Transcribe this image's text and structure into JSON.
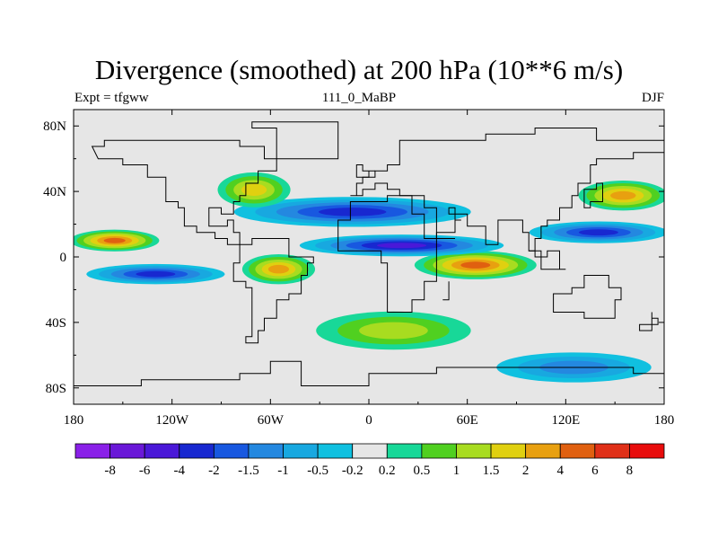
{
  "title": "Divergence (smoothed) at 200 hPa (10**6 m/s)",
  "subtitle_left": "Expt = tfgww",
  "subtitle_center": "111_0_MaBP",
  "subtitle_right": "DJF",
  "chart_data": {
    "type": "heatmap",
    "title": "Divergence (smoothed) at 200 hPa (10**6 m/s)",
    "field": "Divergence (smoothed) at 200 hPa",
    "units": "10**6 m/s",
    "experiment": "tfgww",
    "period": "111_0_MaBP",
    "season": "DJF",
    "x_range": [
      -180,
      180
    ],
    "y_range": [
      -90,
      90
    ],
    "x_ticks": [
      {
        "value": -180,
        "label": "180"
      },
      {
        "value": -120,
        "label": "120W"
      },
      {
        "value": -60,
        "label": "60W"
      },
      {
        "value": 0,
        "label": "0"
      },
      {
        "value": 60,
        "label": "60E"
      },
      {
        "value": 120,
        "label": "120E"
      },
      {
        "value": 180,
        "label": "180"
      }
    ],
    "y_ticks": [
      {
        "value": 80,
        "label": "80N"
      },
      {
        "value": 40,
        "label": "40N"
      },
      {
        "value": 0,
        "label": "0"
      },
      {
        "value": -40,
        "label": "40S"
      },
      {
        "value": -80,
        "label": "80S"
      }
    ],
    "contour_levels": [
      -8,
      -6,
      -4,
      -2,
      -1.5,
      -1,
      -0.5,
      -0.2,
      0.2,
      0.5,
      1,
      1.5,
      2,
      4,
      6,
      8
    ],
    "colorbar_labels": [
      "-8",
      "-6",
      "-4",
      "-2",
      "-1.5",
      "-1",
      "-0.5",
      "-0.2",
      "0.2",
      "0.5",
      "1",
      "1.5",
      "2",
      "4",
      "6",
      "8"
    ],
    "colorbar_colors": [
      "#8a20e8",
      "#6a18d8",
      "#4a18d8",
      "#1828d0",
      "#1858e0",
      "#2488e0",
      "#18a8e0",
      "#10c0e0",
      "#e6e6e6",
      "#18d898",
      "#50d020",
      "#a8dc20",
      "#e0d010",
      "#e8a010",
      "#e06010",
      "#e03018",
      "#e80c0c"
    ],
    "features": [
      {
        "name": "tropical-divergence-indian-ocean",
        "lon": [
          30,
          100
        ],
        "lat": [
          -12,
          2
        ],
        "value": 4
      },
      {
        "name": "tropical-divergence-south-america",
        "lon": [
          -75,
          -35
        ],
        "lat": [
          -15,
          0
        ],
        "value": 2
      },
      {
        "name": "tropical-convergence-band-west",
        "lon": [
          -170,
          -90
        ],
        "lat": [
          -15,
          -6
        ],
        "value": -2
      },
      {
        "name": "tropical-convergence-band-east",
        "lon": [
          -40,
          80
        ],
        "lat": [
          2,
          12
        ],
        "value": -4
      },
      {
        "name": "subtropical-convergence-north-atlantic",
        "lon": [
          -80,
          60
        ],
        "lat": [
          20,
          35
        ],
        "value": -2
      },
      {
        "name": "subtropical-convergence-west-pacific",
        "lon": [
          100,
          180
        ],
        "lat": [
          10,
          20
        ],
        "value": -2
      },
      {
        "name": "north-pacific-divergence",
        "lon": [
          -180,
          -130
        ],
        "lat": [
          5,
          15
        ],
        "value": 4
      },
      {
        "name": "north-pacific-storm-track",
        "lon": [
          130,
          180
        ],
        "lat": [
          30,
          45
        ],
        "value": 2
      },
      {
        "name": "north-atlantic-divergence",
        "lon": [
          -90,
          -50
        ],
        "lat": [
          32,
          50
        ],
        "value": 1.5
      },
      {
        "name": "southern-ocean-divergence",
        "lon": [
          -30,
          60
        ],
        "lat": [
          -55,
          -35
        ],
        "value": 1
      },
      {
        "name": "southern-ocean-convergence",
        "lon": [
          80,
          170
        ],
        "lat": [
          -75,
          -60
        ],
        "value": -1
      }
    ]
  }
}
